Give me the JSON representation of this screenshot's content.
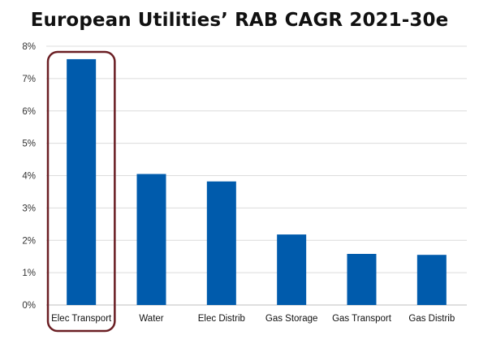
{
  "chart_data": {
    "type": "bar",
    "title": "European Utilities’ RAB CAGR 2021-30e",
    "categories": [
      "Elec Transport",
      "Water",
      "Elec Distrib",
      "Gas Storage",
      "Gas Transport",
      "Gas Distrib"
    ],
    "values": [
      7.6,
      4.05,
      3.82,
      2.18,
      1.58,
      1.55
    ],
    "ylim": [
      0,
      8
    ],
    "yticks": [
      "0%",
      "1%",
      "2%",
      "3%",
      "4%",
      "5%",
      "6%",
      "7%",
      "8%"
    ],
    "xlabel": "",
    "ylabel": "",
    "grid": true,
    "bar_color": "#005BAC",
    "highlight": {
      "category": "Elec Transport",
      "color": "#6B1F24"
    }
  }
}
